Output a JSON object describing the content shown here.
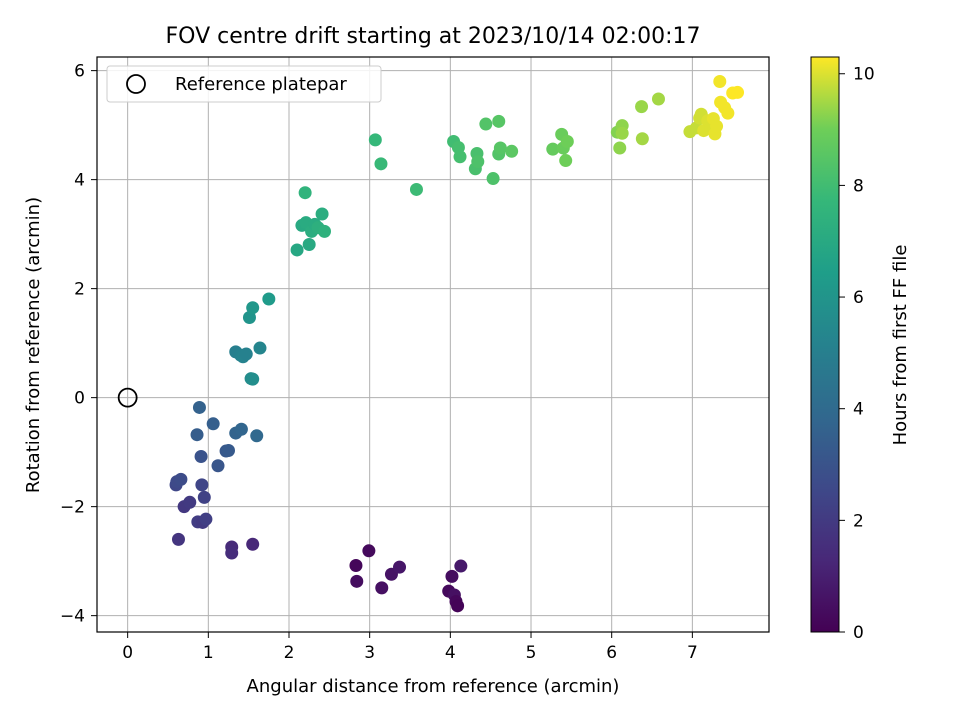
{
  "chart_data": {
    "type": "scatter",
    "title": "FOV centre drift starting at 2023/10/14 02:00:17",
    "xlabel": "Angular distance from reference (arcmin)",
    "ylabel": "Rotation from reference (arcmin)",
    "xlim": [
      -0.38,
      7.95
    ],
    "ylim": [
      -4.3,
      6.25
    ],
    "xticks": [
      0,
      1,
      2,
      3,
      4,
      5,
      6,
      7
    ],
    "yticks": [
      -4,
      -2,
      0,
      2,
      4,
      6
    ],
    "grid": true,
    "legend": {
      "position": "top-left",
      "entries": [
        "Reference platepar"
      ]
    },
    "reference_point": {
      "x": 0,
      "y": 0
    },
    "colorbar": {
      "label": "Hours from first FF file",
      "colormap": "viridis",
      "range": [
        0,
        10.3
      ],
      "ticks": [
        0,
        2,
        4,
        6,
        8,
        10
      ]
    },
    "points": [
      {
        "x": 2.83,
        "y": -3.08,
        "c": 0.2
      },
      {
        "x": 2.99,
        "y": -2.81,
        "c": 0.3
      },
      {
        "x": 2.84,
        "y": -3.37,
        "c": 0.4
      },
      {
        "x": 3.15,
        "y": -3.49,
        "c": 0.5
      },
      {
        "x": 3.27,
        "y": -3.24,
        "c": 0.6
      },
      {
        "x": 3.37,
        "y": -3.11,
        "c": 0.7
      },
      {
        "x": 3.98,
        "y": -3.55,
        "c": 0.3
      },
      {
        "x": 4.02,
        "y": -3.28,
        "c": 0.4
      },
      {
        "x": 4.05,
        "y": -3.62,
        "c": 0.5
      },
      {
        "x": 4.07,
        "y": -3.74,
        "c": 0.2
      },
      {
        "x": 4.09,
        "y": -3.82,
        "c": 0.1
      },
      {
        "x": 4.13,
        "y": -3.09,
        "c": 0.8
      },
      {
        "x": 1.29,
        "y": -2.74,
        "c": 1.4
      },
      {
        "x": 1.29,
        "y": -2.85,
        "c": 1.5
      },
      {
        "x": 1.55,
        "y": -2.69,
        "c": 1.3
      },
      {
        "x": 0.63,
        "y": -2.6,
        "c": 1.8
      },
      {
        "x": 0.7,
        "y": -2.0,
        "c": 1.9
      },
      {
        "x": 0.77,
        "y": -1.92,
        "c": 2.0
      },
      {
        "x": 0.87,
        "y": -2.28,
        "c": 2.1
      },
      {
        "x": 0.93,
        "y": -2.29,
        "c": 2.0
      },
      {
        "x": 0.97,
        "y": -2.23,
        "c": 2.2
      },
      {
        "x": 0.6,
        "y": -1.6,
        "c": 2.5
      },
      {
        "x": 0.61,
        "y": -1.54,
        "c": 2.6
      },
      {
        "x": 0.66,
        "y": -1.5,
        "c": 2.7
      },
      {
        "x": 0.92,
        "y": -1.6,
        "c": 2.4
      },
      {
        "x": 0.95,
        "y": -1.83,
        "c": 2.3
      },
      {
        "x": 0.91,
        "y": -1.08,
        "c": 3.0
      },
      {
        "x": 1.12,
        "y": -1.25,
        "c": 3.1
      },
      {
        "x": 1.22,
        "y": -0.98,
        "c": 3.2
      },
      {
        "x": 1.25,
        "y": -0.97,
        "c": 3.3
      },
      {
        "x": 0.86,
        "y": -0.68,
        "c": 3.4
      },
      {
        "x": 0.89,
        "y": -0.18,
        "c": 3.6
      },
      {
        "x": 1.06,
        "y": -0.48,
        "c": 3.5
      },
      {
        "x": 1.34,
        "y": -0.65,
        "c": 3.7
      },
      {
        "x": 1.41,
        "y": -0.58,
        "c": 3.8
      },
      {
        "x": 1.6,
        "y": -0.7,
        "c": 3.9
      },
      {
        "x": 1.34,
        "y": 0.84,
        "c": 5.0
      },
      {
        "x": 1.4,
        "y": 0.78,
        "c": 5.1
      },
      {
        "x": 1.43,
        "y": 0.75,
        "c": 5.2
      },
      {
        "x": 1.47,
        "y": 0.8,
        "c": 5.1
      },
      {
        "x": 1.64,
        "y": 0.91,
        "c": 5.3
      },
      {
        "x": 1.53,
        "y": 0.35,
        "c": 5.6
      },
      {
        "x": 1.55,
        "y": 0.34,
        "c": 5.7
      },
      {
        "x": 1.51,
        "y": 1.47,
        "c": 6.0
      },
      {
        "x": 1.55,
        "y": 1.65,
        "c": 6.1
      },
      {
        "x": 1.75,
        "y": 1.81,
        "c": 6.3
      },
      {
        "x": 2.1,
        "y": 2.71,
        "c": 6.9
      },
      {
        "x": 2.16,
        "y": 3.16,
        "c": 7.0
      },
      {
        "x": 2.21,
        "y": 3.21,
        "c": 7.1
      },
      {
        "x": 2.25,
        "y": 2.81,
        "c": 7.0
      },
      {
        "x": 2.28,
        "y": 3.05,
        "c": 7.2
      },
      {
        "x": 2.32,
        "y": 3.18,
        "c": 7.1
      },
      {
        "x": 2.36,
        "y": 3.12,
        "c": 7.3
      },
      {
        "x": 2.41,
        "y": 3.37,
        "c": 7.2
      },
      {
        "x": 2.44,
        "y": 3.05,
        "c": 7.4
      },
      {
        "x": 2.2,
        "y": 3.76,
        "c": 7.5
      },
      {
        "x": 3.07,
        "y": 4.73,
        "c": 7.7
      },
      {
        "x": 3.14,
        "y": 4.29,
        "c": 7.8
      },
      {
        "x": 3.58,
        "y": 3.82,
        "c": 7.9
      },
      {
        "x": 4.04,
        "y": 4.7,
        "c": 8.0
      },
      {
        "x": 4.1,
        "y": 4.59,
        "c": 8.1
      },
      {
        "x": 4.12,
        "y": 4.42,
        "c": 8.1
      },
      {
        "x": 4.31,
        "y": 4.2,
        "c": 8.2
      },
      {
        "x": 4.33,
        "y": 4.48,
        "c": 8.2
      },
      {
        "x": 4.34,
        "y": 4.33,
        "c": 8.3
      },
      {
        "x": 4.44,
        "y": 5.02,
        "c": 8.4
      },
      {
        "x": 4.53,
        "y": 4.02,
        "c": 8.3
      },
      {
        "x": 4.6,
        "y": 4.47,
        "c": 8.4
      },
      {
        "x": 4.6,
        "y": 5.07,
        "c": 8.5
      },
      {
        "x": 4.62,
        "y": 4.58,
        "c": 8.5
      },
      {
        "x": 4.76,
        "y": 4.52,
        "c": 8.6
      },
      {
        "x": 5.27,
        "y": 4.56,
        "c": 8.8
      },
      {
        "x": 5.38,
        "y": 4.83,
        "c": 8.9
      },
      {
        "x": 5.4,
        "y": 4.58,
        "c": 8.9
      },
      {
        "x": 5.43,
        "y": 4.35,
        "c": 9.0
      },
      {
        "x": 5.45,
        "y": 4.7,
        "c": 9.0
      },
      {
        "x": 6.07,
        "y": 4.87,
        "c": 9.2
      },
      {
        "x": 6.1,
        "y": 4.58,
        "c": 9.3
      },
      {
        "x": 6.13,
        "y": 4.99,
        "c": 9.3
      },
      {
        "x": 6.13,
        "y": 4.85,
        "c": 9.4
      },
      {
        "x": 6.37,
        "y": 5.34,
        "c": 9.4
      },
      {
        "x": 6.38,
        "y": 4.75,
        "c": 9.5
      },
      {
        "x": 6.58,
        "y": 5.48,
        "c": 9.5
      },
      {
        "x": 6.97,
        "y": 4.88,
        "c": 9.8
      },
      {
        "x": 7.05,
        "y": 4.95,
        "c": 9.8
      },
      {
        "x": 7.09,
        "y": 5.13,
        "c": 9.9
      },
      {
        "x": 7.11,
        "y": 5.2,
        "c": 9.9
      },
      {
        "x": 7.14,
        "y": 4.9,
        "c": 10.0
      },
      {
        "x": 7.19,
        "y": 5.08,
        "c": 10.0
      },
      {
        "x": 7.23,
        "y": 4.96,
        "c": 10.0
      },
      {
        "x": 7.26,
        "y": 5.12,
        "c": 10.1
      },
      {
        "x": 7.28,
        "y": 4.84,
        "c": 10.1
      },
      {
        "x": 7.3,
        "y": 4.98,
        "c": 10.1
      },
      {
        "x": 7.34,
        "y": 5.8,
        "c": 10.2
      },
      {
        "x": 7.35,
        "y": 5.42,
        "c": 10.2
      },
      {
        "x": 7.4,
        "y": 5.32,
        "c": 10.2
      },
      {
        "x": 7.44,
        "y": 5.22,
        "c": 10.2
      },
      {
        "x": 7.5,
        "y": 5.59,
        "c": 10.3
      },
      {
        "x": 7.56,
        "y": 5.6,
        "c": 10.3
      }
    ]
  }
}
